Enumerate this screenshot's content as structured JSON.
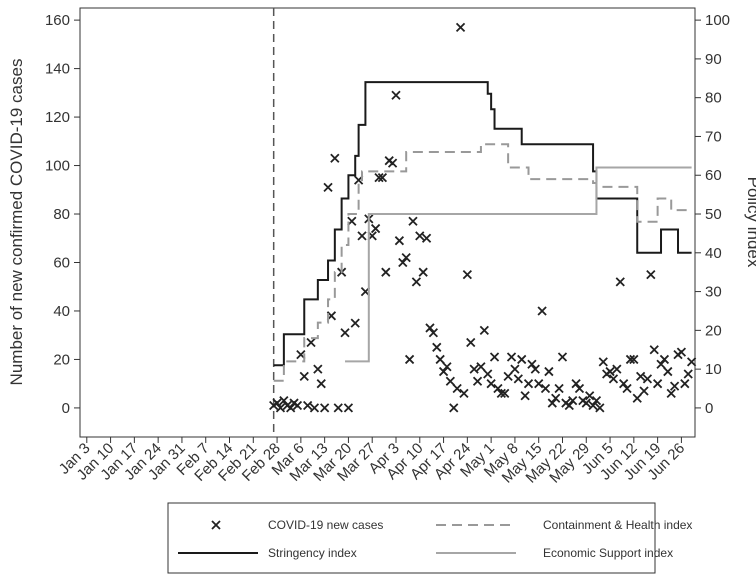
{
  "chart_data": {
    "type": "combo",
    "ylabel": "Number of new confirmed COVID-19 cases",
    "y2label": "Policy index",
    "xlim": [
      "Jan 1",
      "Jun 30"
    ],
    "xticks": [
      "Jan 3",
      "Jan 10",
      "Jan 17",
      "Jan 24",
      "Jan 31",
      "Feb 7",
      "Feb 14",
      "Feb 21",
      "Feb 28",
      "Mar 6",
      "Mar 13",
      "Mar 20",
      "Mar 27",
      "Apr 3",
      "Apr 10",
      "Apr 17",
      "Apr 24",
      "May 1",
      "May 8",
      "May 15",
      "May 22",
      "May 29",
      "Jun 5",
      "Jun 12",
      "Jun 19",
      "Jun 26"
    ],
    "ylim": [
      -12,
      165
    ],
    "yticks": [
      0,
      20,
      40,
      60,
      80,
      100,
      120,
      140,
      160
    ],
    "y2lim": [
      -7.5,
      103.125
    ],
    "y2ticks": [
      0,
      10,
      20,
      30,
      40,
      50,
      60,
      70,
      80,
      90,
      100
    ],
    "vline": "Feb 27",
    "series": [
      {
        "name": "COVID-19 new cases",
        "type": "scatter",
        "color": "#222222",
        "x": [
          "Feb 27",
          "Feb 28",
          "Feb 29",
          "Mar 1",
          "Mar 2",
          "Mar 3",
          "Mar 4",
          "Mar 5",
          "Mar 6",
          "Mar 7",
          "Mar 8",
          "Mar 9",
          "Mar 10",
          "Mar 11",
          "Mar 12",
          "Mar 13",
          "Mar 14",
          "Mar 15",
          "Mar 16",
          "Mar 17",
          "Mar 18",
          "Mar 19",
          "Mar 20",
          "Mar 21",
          "Mar 22",
          "Mar 23",
          "Mar 24",
          "Mar 25",
          "Mar 26",
          "Mar 27",
          "Mar 28",
          "Mar 29",
          "Mar 30",
          "Mar 31",
          "Apr 1",
          "Apr 2",
          "Apr 3",
          "Apr 4",
          "Apr 5",
          "Apr 6",
          "Apr 7",
          "Apr 8",
          "Apr 9",
          "Apr 10",
          "Apr 11",
          "Apr 12",
          "Apr 13",
          "Apr 14",
          "Apr 15",
          "Apr 16",
          "Apr 17",
          "Apr 18",
          "Apr 19",
          "Apr 20",
          "Apr 21",
          "Apr 22",
          "Apr 23",
          "Apr 24",
          "Apr 25",
          "Apr 26",
          "Apr 27",
          "Apr 28",
          "Apr 29",
          "Apr 30",
          "May 1",
          "May 2",
          "May 3",
          "May 4",
          "May 5",
          "May 6",
          "May 7",
          "May 8",
          "May 9",
          "May 10",
          "May 11",
          "May 12",
          "May 13",
          "May 14",
          "May 15",
          "May 16",
          "May 17",
          "May 18",
          "May 19",
          "May 20",
          "May 21",
          "May 22",
          "May 23",
          "May 24",
          "May 25",
          "May 26",
          "May 27",
          "May 28",
          "May 29",
          "May 30",
          "May 31",
          "Jun 1",
          "Jun 2",
          "Jun 3",
          "Jun 4",
          "Jun 5",
          "Jun 6",
          "Jun 7",
          "Jun 8",
          "Jun 9",
          "Jun 10",
          "Jun 11",
          "Jun 12",
          "Jun 13",
          "Jun 14",
          "Jun 15",
          "Jun 16",
          "Jun 17",
          "Jun 18",
          "Jun 19",
          "Jun 20",
          "Jun 21",
          "Jun 22",
          "Jun 23",
          "Jun 24",
          "Jun 25",
          "Jun 26",
          "Jun 27",
          "Jun 28",
          "Jun 29"
        ],
        "values": [
          1,
          2,
          0,
          3,
          1,
          0,
          2,
          1,
          22,
          13,
          1,
          27,
          0,
          16,
          10,
          0,
          91,
          38,
          103,
          0,
          56,
          31,
          0,
          77,
          35,
          94,
          71,
          48,
          78,
          71,
          74,
          95,
          95,
          56,
          102,
          101,
          129,
          69,
          60,
          62,
          20,
          77,
          52,
          71,
          56,
          70,
          33,
          31,
          25,
          20,
          15,
          17,
          11,
          0,
          8,
          157,
          6,
          55,
          27,
          16,
          11,
          17,
          32,
          14,
          10,
          21,
          8,
          6,
          6,
          13,
          21,
          16,
          12,
          20,
          5,
          10,
          18,
          16,
          10,
          40,
          8,
          15,
          2,
          4,
          8,
          21,
          2,
          1,
          3,
          10,
          8,
          3,
          2,
          5,
          1,
          3,
          0,
          19,
          14,
          15,
          12,
          16,
          52,
          10,
          8,
          20,
          20,
          4,
          13,
          7,
          12,
          55,
          24,
          10,
          18,
          20,
          15,
          6,
          9,
          22,
          23,
          10,
          14,
          19
        ]
      },
      {
        "name": "Stringency index",
        "type": "line",
        "axis": "y2",
        "color": "#1a1a1a",
        "drawstyle": "steps-post",
        "x": [
          "Feb 27",
          "Mar 1",
          "Mar 7",
          "Mar 11",
          "Mar 14",
          "Mar 16",
          "Mar 18",
          "Mar 20",
          "Mar 22",
          "Mar 23",
          "Mar 25",
          "Apr 30",
          "May 1",
          "May 2",
          "May 10",
          "May 31",
          "Jun 1",
          "Jun 13",
          "Jun 20",
          "Jun 25",
          "Jun 29"
        ],
        "values": [
          11,
          19,
          28,
          33,
          38,
          46,
          54,
          60,
          65,
          73,
          84,
          81,
          77,
          72,
          68,
          61,
          54,
          40,
          46,
          40,
          40
        ]
      },
      {
        "name": "Containment & Health index",
        "type": "line",
        "axis": "y2",
        "color": "#999999",
        "dash": "10,6",
        "drawstyle": "steps-post",
        "x": [
          "Feb 27",
          "Mar 1",
          "Mar 7",
          "Mar 11",
          "Mar 14",
          "Mar 16",
          "Mar 18",
          "Mar 20",
          "Mar 23",
          "Mar 24",
          "Apr 6",
          "Apr 28",
          "May 6",
          "May 12",
          "May 31",
          "Jun 1",
          "Jun 13",
          "Jun 19",
          "Jun 23",
          "Jun 29"
        ],
        "values": [
          7,
          12,
          18,
          22,
          28,
          35,
          42,
          50,
          58,
          61,
          66,
          68,
          62,
          59,
          58,
          57,
          48,
          54,
          51,
          51
        ]
      },
      {
        "name": "Economic Support index",
        "type": "line",
        "axis": "y2",
        "color": "#a6a6a6",
        "drawstyle": "steps-post",
        "x": [
          "Mar 19",
          "Mar 26",
          "Jun 1",
          "Jun 29"
        ],
        "values": [
          12,
          50,
          62,
          62
        ]
      }
    ]
  }
}
